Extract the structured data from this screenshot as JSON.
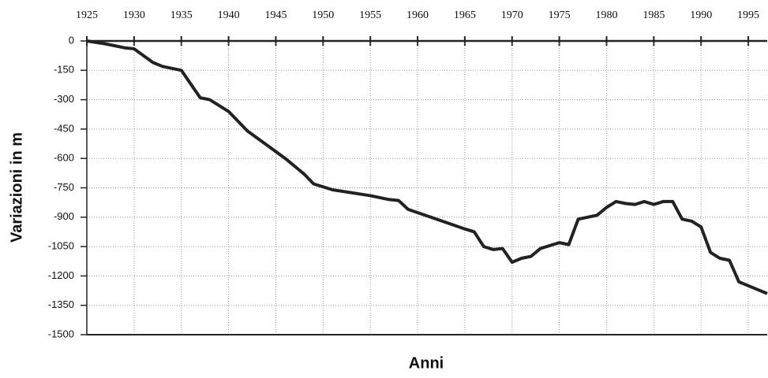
{
  "chart_data": {
    "type": "line",
    "x_label": "Anni",
    "y_label": "Variazioni in m",
    "x": [
      1925,
      1927,
      1929,
      1930,
      1932,
      1933,
      1934,
      1935,
      1937,
      1938,
      1940,
      1942,
      1944,
      1946,
      1948,
      1949,
      1951,
      1955,
      1957,
      1958,
      1959,
      1962,
      1965,
      1966,
      1967,
      1968,
      1969,
      1970,
      1971,
      1972,
      1973,
      1975,
      1976,
      1977,
      1978,
      1979,
      1980,
      1981,
      1982,
      1983,
      1984,
      1985,
      1986,
      1987,
      1988,
      1989,
      1990,
      1991,
      1992,
      1993,
      1994,
      1995,
      1996,
      1997
    ],
    "series": [
      {
        "color": "#222222",
        "values": [
          0,
          -15,
          -35,
          -40,
          -110,
          -130,
          -140,
          -150,
          -290,
          -300,
          -360,
          -460,
          -530,
          -600,
          -680,
          -730,
          -760,
          -790,
          -810,
          -815,
          -860,
          -910,
          -960,
          -975,
          -1050,
          -1065,
          -1060,
          -1130,
          -1110,
          -1100,
          -1060,
          -1030,
          -1040,
          -910,
          -900,
          -890,
          -850,
          -820,
          -830,
          -835,
          -820,
          -835,
          -820,
          -820,
          -910,
          -920,
          -950,
          -1080,
          -1110,
          -1120,
          -1230,
          -1250,
          -1270,
          -1290
        ]
      }
    ],
    "xlim": [
      1925,
      1997
    ],
    "ylim": [
      -1500,
      0
    ],
    "xticks": [
      1925,
      1930,
      1935,
      1940,
      1945,
      1950,
      1955,
      1960,
      1965,
      1970,
      1975,
      1980,
      1985,
      1990,
      1995
    ],
    "yticks": [
      0,
      -150,
      -300,
      -450,
      -600,
      -750,
      -900,
      -1050,
      -1200,
      -1350,
      -1500
    ],
    "grid": true
  }
}
